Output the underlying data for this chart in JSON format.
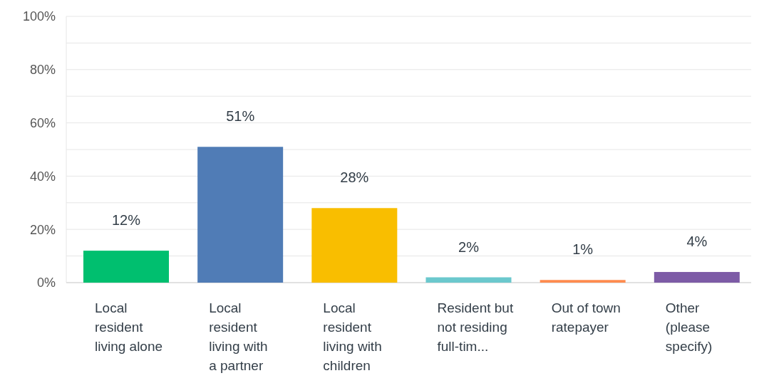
{
  "chart_data": {
    "type": "bar",
    "categories": [
      "Local resident living alone",
      "Local resident living with a partner",
      "Local resident living with children",
      "Resident but not residing full-tim...",
      "Out of town ratepayer",
      "Other (please specify)"
    ],
    "values": [
      12,
      51,
      28,
      2,
      1,
      4
    ],
    "colors": [
      "#00bf6f",
      "#507cb6",
      "#f9be00",
      "#6bc8cd",
      "#ff8b4f",
      "#7d5ba6"
    ],
    "value_labels": [
      "12%",
      "51%",
      "28%",
      "2%",
      "1%",
      "4%"
    ],
    "ylim": [
      0,
      100
    ],
    "yticks": [
      {
        "value": 0,
        "label": "0%"
      },
      {
        "value": 10,
        "label": null
      },
      {
        "value": 20,
        "label": "20%"
      },
      {
        "value": 30,
        "label": null
      },
      {
        "value": 40,
        "label": "40%"
      },
      {
        "value": 50,
        "label": null
      },
      {
        "value": 60,
        "label": "60%"
      },
      {
        "value": 70,
        "label": null
      },
      {
        "value": 80,
        "label": "80%"
      },
      {
        "value": 90,
        "label": null
      },
      {
        "value": 100,
        "label": "100%"
      }
    ],
    "grid": "y"
  }
}
